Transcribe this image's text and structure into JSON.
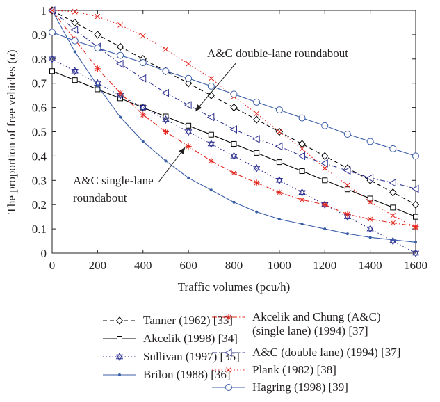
{
  "chart_data": {
    "type": "line",
    "title": "",
    "xlabel": "Traffic volumes (pcu/h)",
    "ylabel": "The proportion of free vehicles (α)",
    "xlim": [
      0,
      1600
    ],
    "ylim": [
      0,
      1
    ],
    "x_ticks": [
      "0",
      "200",
      "400",
      "600",
      "800",
      "1000",
      "1200",
      "1400",
      "1600"
    ],
    "y_ticks": [
      "0",
      "0.1",
      "0.2",
      "0.3",
      "0.4",
      "0.5",
      "0.6",
      "0.7",
      "0.8",
      "0.9",
      "1"
    ],
    "grid": false,
    "legend_placement": "bottom",
    "series": [
      {
        "name": "Tanner (1962) [33]",
        "color": "#000000",
        "dash": "dashed",
        "marker": "diamond",
        "x": [
          0,
          100,
          200,
          300,
          400,
          500,
          600,
          700,
          800,
          900,
          1000,
          1100,
          1200,
          1300,
          1400,
          1500,
          1600
        ],
        "y": [
          1.0,
          0.95,
          0.9,
          0.85,
          0.8,
          0.75,
          0.7,
          0.65,
          0.6,
          0.55,
          0.5,
          0.45,
          0.4,
          0.35,
          0.3,
          0.25,
          0.2
        ]
      },
      {
        "name": "Akcelik (1998) [34]",
        "color": "#000000",
        "dash": "solid",
        "marker": "square",
        "x": [
          0,
          100,
          200,
          300,
          400,
          500,
          600,
          700,
          800,
          900,
          1000,
          1100,
          1200,
          1300,
          1400,
          1500,
          1600
        ],
        "y": [
          0.75,
          0.713,
          0.675,
          0.638,
          0.6,
          0.563,
          0.525,
          0.488,
          0.45,
          0.413,
          0.375,
          0.338,
          0.3,
          0.263,
          0.225,
          0.188,
          0.15
        ]
      },
      {
        "name": "Sullivan (1997) [35]",
        "color": "#2e3192",
        "dash": "dotted",
        "marker": "star6",
        "x": [
          0,
          100,
          200,
          300,
          400,
          500,
          600,
          700,
          800,
          900,
          1000,
          1100,
          1200,
          1300,
          1400,
          1500,
          1600
        ],
        "y": [
          0.8,
          0.75,
          0.7,
          0.65,
          0.6,
          0.55,
          0.5,
          0.45,
          0.4,
          0.35,
          0.3,
          0.25,
          0.2,
          0.15,
          0.1,
          0.05,
          0.0
        ]
      },
      {
        "name": "Brilon (1988) [36]",
        "color": "#3a5da8",
        "dash": "solid",
        "marker": "dot",
        "x": [
          0,
          100,
          200,
          300,
          400,
          500,
          600,
          700,
          800,
          900,
          1000,
          1100,
          1200,
          1300,
          1400,
          1500,
          1600
        ],
        "y": [
          1.0,
          0.83,
          0.69,
          0.56,
          0.46,
          0.38,
          0.31,
          0.26,
          0.21,
          0.17,
          0.14,
          0.12,
          0.1,
          0.08,
          0.065,
          0.055,
          0.045
        ]
      },
      {
        "name": "Akcelik and Chung (A&C) (single lane) (1994) [37]",
        "color": "#e2231a",
        "dash": "dashdot",
        "marker": "asterisk",
        "x": [
          0,
          100,
          200,
          300,
          400,
          500,
          600,
          700,
          800,
          900,
          1000,
          1100,
          1200,
          1300,
          1400,
          1500,
          1600
        ],
        "y": [
          1.0,
          0.88,
          0.76,
          0.66,
          0.57,
          0.5,
          0.44,
          0.38,
          0.33,
          0.29,
          0.25,
          0.22,
          0.2,
          0.16,
          0.14,
          0.125,
          0.11
        ]
      },
      {
        "name": "A&C (double lane) (1994) [37]",
        "color": "#2e3192",
        "dash": "dashdot",
        "marker": "triangle-left",
        "x": [
          0,
          100,
          200,
          300,
          400,
          500,
          600,
          700,
          800,
          900,
          1000,
          1100,
          1200,
          1300,
          1400,
          1500,
          1600
        ],
        "y": [
          1.0,
          0.92,
          0.85,
          0.78,
          0.72,
          0.66,
          0.61,
          0.56,
          0.51,
          0.47,
          0.44,
          0.4,
          0.37,
          0.34,
          0.31,
          0.29,
          0.265
        ]
      },
      {
        "name": "Plank (1982) [38]",
        "color": "#e2231a",
        "dash": "dotted",
        "marker": "cross",
        "x": [
          0,
          100,
          200,
          300,
          400,
          500,
          600,
          700,
          800,
          900,
          1000,
          1100,
          1200,
          1300,
          1400,
          1500,
          1600
        ],
        "y": [
          1.0,
          0.995,
          0.975,
          0.94,
          0.895,
          0.84,
          0.78,
          0.72,
          0.645,
          0.575,
          0.5,
          0.43,
          0.35,
          0.28,
          0.21,
          0.155,
          0.105
        ]
      },
      {
        "name": "Hagring (1998) [39]",
        "color": "#3a5da8",
        "dash": "solid",
        "marker": "circle",
        "x": [
          0,
          100,
          200,
          300,
          400,
          500,
          600,
          700,
          800,
          900,
          1000,
          1100,
          1200,
          1300,
          1400,
          1500,
          1600
        ],
        "y": [
          0.91,
          0.875,
          0.845,
          0.815,
          0.785,
          0.75,
          0.72,
          0.688,
          0.655,
          0.622,
          0.59,
          0.557,
          0.525,
          0.49,
          0.46,
          0.43,
          0.4
        ]
      }
    ],
    "annotations": [
      {
        "text": "A&C double-lane roundabout",
        "points_to_x": 650,
        "points_to_y": 0.58
      },
      {
        "text_lines": [
          "A&C single-lane",
          "roundabout"
        ],
        "points_to_x": 590,
        "points_to_y": 0.44
      }
    ]
  },
  "legend_layout": {
    "column_1": [
      "Tanner (1962) [33]",
      "Akcelik (1998) [34]",
      "Sullivan (1997) [35]",
      "Brilon (1988) [36]"
    ],
    "column_2": [
      "Akcelik and Chung (A&C)",
      "(single lane) (1994) [37]",
      "A&C (double lane) (1994) [37]",
      "Plank (1982) [38]",
      "Hagring (1998) [39]"
    ]
  }
}
